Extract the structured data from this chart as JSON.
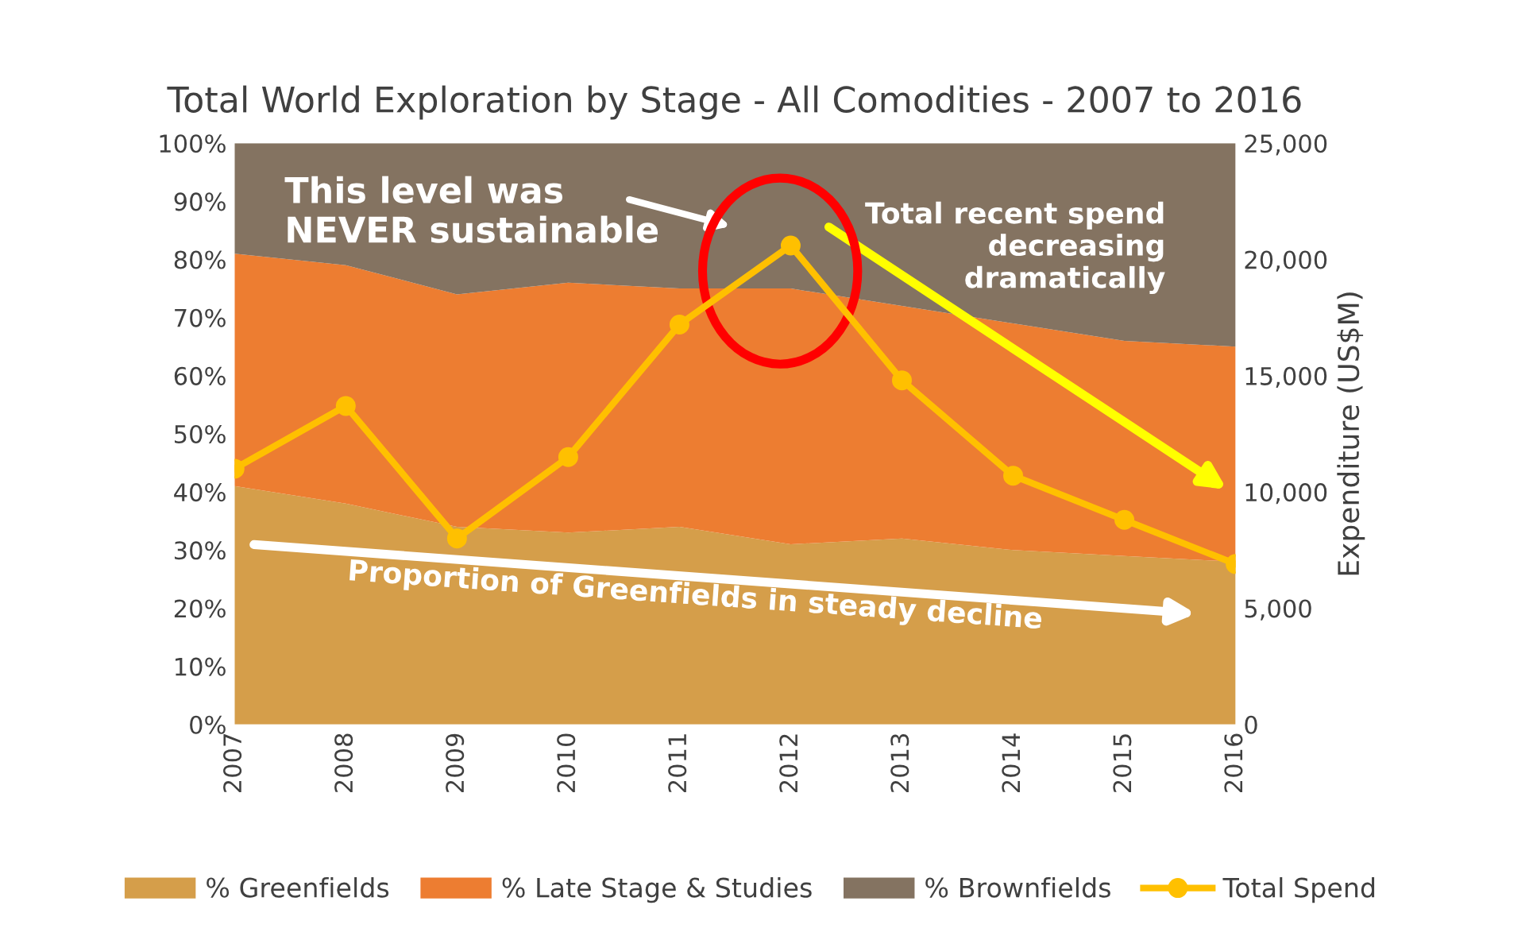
{
  "chart_data": {
    "type": "area",
    "title": "Total World Exploration by Stage - All Comodities - 2007 to 2016",
    "ylabel": null,
    "y2label": "Expenditure (US$M)",
    "categories": [
      "2007",
      "2008",
      "2009",
      "2010",
      "2011",
      "2012",
      "2013",
      "2014",
      "2015",
      "2016"
    ],
    "stacked": true,
    "series": [
      {
        "name": "% Greenfields",
        "color": "#d59e4a",
        "values": [
          41,
          38,
          34,
          33,
          34,
          31,
          32,
          30,
          29,
          28
        ]
      },
      {
        "name": "% Late Stage & Studies",
        "color": "#ed7d31",
        "values": [
          40,
          41,
          40,
          43,
          41,
          44,
          40,
          39,
          37,
          37
        ]
      },
      {
        "name": "% Brownfields",
        "color": "#847361",
        "values": [
          19,
          21,
          26,
          24,
          25,
          25,
          28,
          31,
          34,
          35
        ]
      },
      {
        "name": "Total Spend",
        "type": "line",
        "axis": "y2",
        "color": "#ffc000",
        "marker": "circle",
        "values": [
          11000,
          13700,
          8000,
          11500,
          17200,
          20600,
          14800,
          10700,
          8800,
          6900
        ]
      }
    ],
    "ylim": [
      0,
      100
    ],
    "yticks": [
      {
        "value": 0,
        "label": "0%"
      },
      {
        "value": 10,
        "label": "10%"
      },
      {
        "value": 20,
        "label": "20%"
      },
      {
        "value": 30,
        "label": "30%"
      },
      {
        "value": 40,
        "label": "40%"
      },
      {
        "value": 50,
        "label": "50%"
      },
      {
        "value": 60,
        "label": "60%"
      },
      {
        "value": 70,
        "label": "70%"
      },
      {
        "value": 80,
        "label": "80%"
      },
      {
        "value": 90,
        "label": "90%"
      },
      {
        "value": 100,
        "label": "100%"
      }
    ],
    "y2lim": [
      0,
      25000
    ],
    "y2ticks": [
      {
        "value": 0,
        "label": "0"
      },
      {
        "value": 5000,
        "label": "5,000"
      },
      {
        "value": 10000,
        "label": "10,000"
      },
      {
        "value": 15000,
        "label": "15,000"
      },
      {
        "value": 20000,
        "label": "20,000"
      },
      {
        "value": 25000,
        "label": "25,000"
      }
    ],
    "legend": "bottom",
    "annotations": [
      "This level was\nNEVER sustainable",
      "Total recent spend\ndecreasing\ndramatically",
      "Proportion of Greenfields in steady decline"
    ]
  }
}
